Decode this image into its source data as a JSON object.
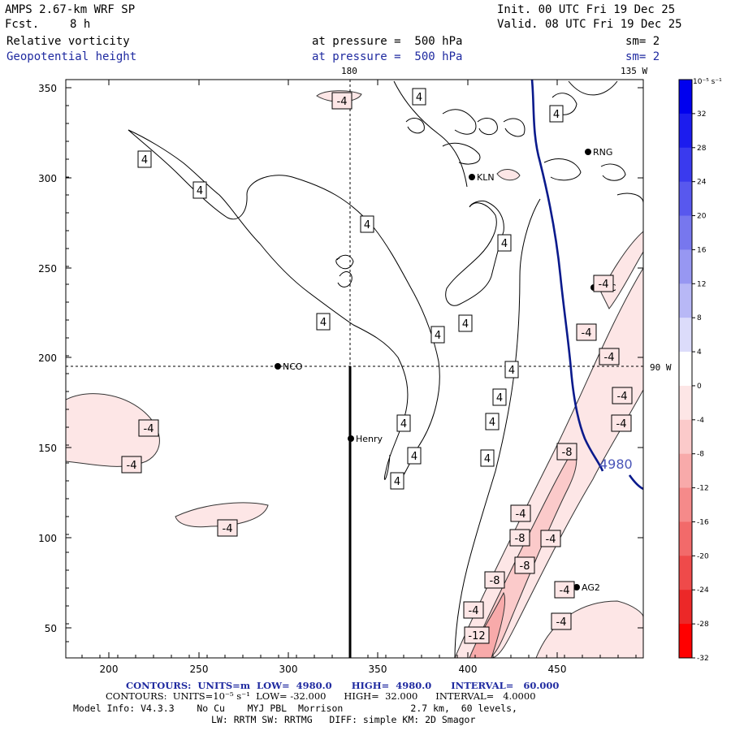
{
  "header": {
    "model": "AMPS 2.67-km WRF SP",
    "forecast_label": "Fcst.",
    "forecast_value": "8 h",
    "init": "Init. 00 UTC Fri 19 Dec 25",
    "valid": "Valid. 08 UTC Fri 19 Dec 25",
    "field1_name": "Relative vorticity",
    "field1_level": "at pressure =  500 hPa",
    "field1_sm": "sm= 2",
    "field2_name": "Geopotential height",
    "field2_level": "at pressure =  500 hPa",
    "field2_sm": "sm= 2"
  },
  "map": {
    "lon_labels": {
      "top_180": "180",
      "top_135w": "135 W",
      "right_90w": "90 W"
    },
    "x_ticks": [
      "200",
      "250",
      "300",
      "350",
      "400",
      "450"
    ],
    "y_ticks": [
      "350",
      "300",
      "250",
      "200",
      "150",
      "100",
      "50"
    ],
    "stations": [
      {
        "name": "KLN",
        "x": 581,
        "y": 218
      },
      {
        "name": "RNG",
        "x": 724,
        "y": 187
      },
      {
        "name": "TRC",
        "x": 731,
        "y": 354
      },
      {
        "name": "NCO",
        "x": 342,
        "y": 451
      },
      {
        "name": "Henry",
        "x": 432,
        "y": 540
      },
      {
        "name": "AG2",
        "x": 710,
        "y": 723
      }
    ],
    "geopotential_label": "4980",
    "positive_labels": [
      "4",
      "4",
      "4",
      "4",
      "4",
      "4",
      "4",
      "4",
      "4",
      "4",
      "4",
      "4",
      "4",
      "4",
      "4",
      "4"
    ],
    "negative_labels": [
      "-4",
      "-4",
      "-4",
      "-4",
      "-4",
      "-4",
      "-4",
      "-4",
      "-4",
      "-4",
      "-4",
      "-4",
      "-4",
      "-8",
      "-8",
      "-8",
      "-8",
      "-4",
      "-12"
    ]
  },
  "colorbar": {
    "units": "10⁻⁵ s⁻¹",
    "ticks": [
      "32",
      "28",
      "24",
      "20",
      "16",
      "12",
      "8",
      "4",
      "0",
      "-4",
      "-8",
      "-12",
      "-16",
      "-20",
      "-24",
      "-28",
      "-32"
    ],
    "colors": [
      "#0000ee",
      "#1c1cee",
      "#3a3aee",
      "#5858ee",
      "#7777ee",
      "#9797f2",
      "#b8b8f6",
      "#dcdcfa",
      "#ffffff",
      "#fde6e6",
      "#fbcaca",
      "#f8aaaa",
      "#f58a8a",
      "#f26a6a",
      "#ef4a4a",
      "#ec2828",
      "#ff0000"
    ]
  },
  "footer": {
    "line1": "CONTOURS:  UNITS=m  LOW=  4980.0      HIGH=  4980.0      INTERVAL=   60.000",
    "line2": "CONTOURS:  UNITS=10⁻⁵ s⁻¹  LOW= -32.000      HIGH=  32.000      INTERVAL=   4.0000",
    "line3": "Model Info: V4.3.3    No Cu    MYJ PBL  Morrison            2.7 km,  60 levels,",
    "line4": "LW: RRTM SW: RRTMG   DIFF: simple KM: 2D Smagor"
  }
}
